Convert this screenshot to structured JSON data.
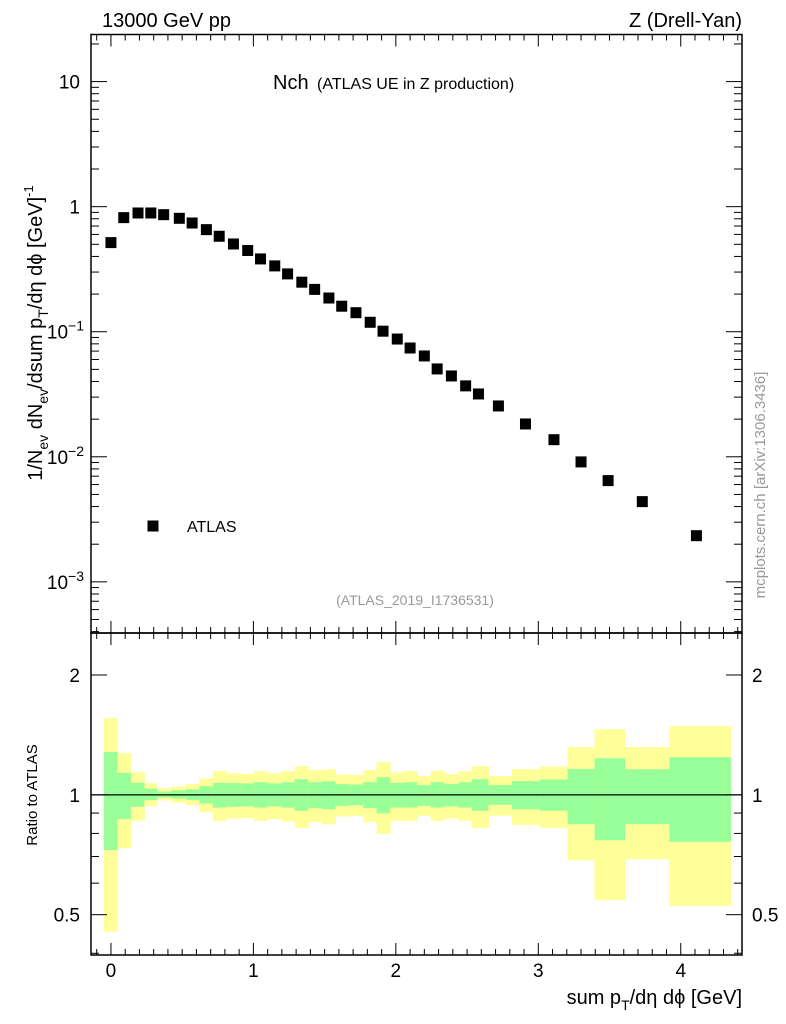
{
  "header": {
    "left": "13000 GeV pp",
    "right": "Z (Drell-Yan)"
  },
  "side_label": "mcplots.cern.ch [arXiv:1306.3436]",
  "chart_data": {
    "type": "scatter",
    "title_main": "Nch",
    "title_sub": "(ATLAS UE in Z production)",
    "reference": "(ATLAS_2019_I1736531)",
    "xlabel": "sum p_T/dη dϕ [GeV]",
    "xlabel_parts": {
      "a": "sum p",
      "sub": "T",
      "b": "/dη dϕ [GeV]"
    },
    "ylabel_parts": {
      "a": "1/N",
      "sub1": "ev",
      "b": " dN",
      "sub2": "ev",
      "c": "/dsum p",
      "sub3": "T",
      "d": "/dη dϕ  [GeV]",
      "sup": "-1"
    },
    "ratio_ylabel": "Ratio to ATLAS",
    "xlim": [
      -0.14,
      4.43
    ],
    "ylim": [
      0.00039,
      23.8
    ],
    "ylog": true,
    "ratio_ylim": [
      0.396,
      2.55
    ],
    "ratio_ylog": true,
    "xticks": [
      "0",
      "1",
      "2",
      "3",
      "4"
    ],
    "yticks": [
      {
        "v": 10,
        "base": "10",
        "exp": ""
      },
      {
        "v": 1,
        "base": "1",
        "exp": ""
      },
      {
        "v": 0.1,
        "base": "10",
        "exp": "−1"
      },
      {
        "v": 0.01,
        "base": "10",
        "exp": "−2"
      },
      {
        "v": 0.001,
        "base": "10",
        "exp": "−3"
      }
    ],
    "ratio_yticks": [
      "2",
      "1",
      "0.5"
    ],
    "legend": [
      {
        "label": "ATLAS",
        "marker": "square",
        "color": "#000000"
      }
    ],
    "legend_position": "lower-left",
    "colors": {
      "marker": "#000000",
      "band_stat": "#99ff99",
      "band_total": "#ffff99",
      "ref_text": "#999999"
    },
    "series": [
      {
        "name": "ATLAS",
        "x": [
          0,
          0.09,
          0.19,
          0.28,
          0.37,
          0.48,
          0.57,
          0.67,
          0.76,
          0.86,
          0.96,
          1.05,
          1.15,
          1.24,
          1.34,
          1.43,
          1.53,
          1.62,
          1.72,
          1.82,
          1.91,
          2.01,
          2.1,
          2.2,
          2.29,
          2.39,
          2.49,
          2.58,
          2.72,
          2.91,
          3.11,
          3.3,
          3.49,
          3.73,
          4.11
        ],
        "y": [
          0.516,
          0.817,
          0.89,
          0.89,
          0.863,
          0.807,
          0.74,
          0.655,
          0.58,
          0.503,
          0.446,
          0.382,
          0.336,
          0.29,
          0.249,
          0.218,
          0.186,
          0.16,
          0.142,
          0.119,
          0.101,
          0.0874,
          0.0741,
          0.064,
          0.0504,
          0.0443,
          0.0369,
          0.0318,
          0.0255,
          0.0183,
          0.0137,
          0.0091,
          0.00645,
          0.00438,
          0.00234
        ]
      }
    ],
    "bins_low_edge": -0.05,
    "bins_high_edge": 4.35,
    "ratio_bands": {
      "total_hi": [
        1.558,
        1.273,
        1.14,
        1.07,
        1.039,
        1.049,
        1.064,
        1.099,
        1.147,
        1.133,
        1.129,
        1.147,
        1.133,
        1.147,
        1.18,
        1.153,
        1.16,
        1.125,
        1.121,
        1.153,
        1.208,
        1.138,
        1.147,
        1.116,
        1.149,
        1.127,
        1.147,
        1.18,
        1.114,
        1.16,
        1.178,
        1.318,
        1.462,
        1.318,
        1.488
      ],
      "stat_hi": [
        1.282,
        1.136,
        1.072,
        1.037,
        1.019,
        1.027,
        1.033,
        1.051,
        1.072,
        1.07,
        1.068,
        1.076,
        1.068,
        1.076,
        1.095,
        1.076,
        1.082,
        1.064,
        1.062,
        1.076,
        1.107,
        1.072,
        1.076,
        1.058,
        1.076,
        1.064,
        1.076,
        1.095,
        1.058,
        1.082,
        1.093,
        1.162,
        1.236,
        1.16,
        1.243
      ],
      "stat_lo": [
        0.727,
        0.869,
        0.933,
        0.97,
        0.985,
        0.979,
        0.971,
        0.951,
        0.929,
        0.933,
        0.935,
        0.929,
        0.935,
        0.929,
        0.912,
        0.926,
        0.92,
        0.938,
        0.942,
        0.926,
        0.899,
        0.929,
        0.929,
        0.938,
        0.929,
        0.935,
        0.929,
        0.912,
        0.944,
        0.92,
        0.912,
        0.844,
        0.769,
        0.844,
        0.762
      ],
      "total_lo": [
        0.453,
        0.734,
        0.862,
        0.936,
        0.968,
        0.955,
        0.942,
        0.905,
        0.86,
        0.872,
        0.874,
        0.86,
        0.869,
        0.857,
        0.826,
        0.854,
        0.844,
        0.882,
        0.886,
        0.854,
        0.798,
        0.86,
        0.86,
        0.886,
        0.86,
        0.872,
        0.86,
        0.826,
        0.887,
        0.841,
        0.826,
        0.685,
        0.544,
        0.689,
        0.526
      ]
    }
  }
}
